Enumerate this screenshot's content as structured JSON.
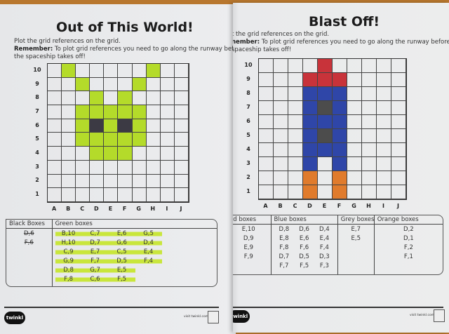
{
  "left_sheet": {
    "title": "Out of This World!",
    "instruction": "Plot the grid references on the grid.",
    "remember_label": "Remember:",
    "remember_text": " To plot grid references you need to go along the runway before",
    "remember_text2": "the spaceship takes off!",
    "columns": [
      "A",
      "B",
      "C",
      "D",
      "E",
      "F",
      "G",
      "H",
      "I",
      "J"
    ],
    "rows": [
      "10",
      "9",
      "8",
      "7",
      "6",
      "5",
      "4",
      "3",
      "2",
      "1"
    ],
    "table": [
      {
        "header": "Black Boxes",
        "color": "#3c3a44",
        "cols": 1,
        "items": [
          "D,6",
          "F,6"
        ],
        "style": "struck"
      },
      {
        "header": "Green boxes",
        "color": "#b4db2a",
        "cols": 4,
        "style": "hl",
        "items": [
          "B,10",
          "C,7",
          "E,6",
          "G,5",
          "H,10",
          "D,7",
          "G,6",
          "D,4",
          "C,9",
          "E,7",
          "C,5",
          "E,4",
          "G,9",
          "F,7",
          "D,5",
          "F,4",
          "D,8",
          "G,7",
          "E,5",
          "",
          "F,8",
          "C,6",
          "F,5",
          ""
        ]
      }
    ],
    "footer": {
      "logo": "twinkl",
      "visit": "visit twinkl.com"
    }
  },
  "right_sheet": {
    "title": "Blast Off!",
    "instruction": "t the grid references on the grid.",
    "remember_label": "nember:",
    "remember_text": " To plot grid references you need to go along the runway before",
    "remember_text2": "spaceship takes off!",
    "columns": [
      "A",
      "B",
      "C",
      "D",
      "E",
      "F",
      "G",
      "H",
      "I",
      "J"
    ],
    "rows": [
      "10",
      "9",
      "8",
      "7",
      "6",
      "5",
      "4",
      "3",
      "2",
      "1"
    ],
    "table": [
      {
        "header": "ed boxes",
        "color": "#c8333a",
        "cols": 1,
        "items": [
          "E,10",
          "D,9",
          "E,9",
          "F,9"
        ],
        "style": ""
      },
      {
        "header": "Blue boxes",
        "color": "#2f46a8",
        "cols": 3,
        "style": "",
        "items": [
          "D,8",
          "D,6",
          "D,4",
          "E,8",
          "E,6",
          "E,4",
          "F,8",
          "F,6",
          "F,4",
          "D,7",
          "D,5",
          "D,3",
          "F,7",
          "F,5",
          "F,3"
        ]
      },
      {
        "header": "Grey boxes",
        "color": "#4c4c4c",
        "cols": 1,
        "items": [
          "E,7",
          "E,5"
        ],
        "style": ""
      },
      {
        "header": "Orange boxes",
        "color": "#e07b2c",
        "cols": 1,
        "items": [
          "D,2",
          "D,1",
          "F,2",
          "F,1"
        ],
        "style": ""
      }
    ],
    "footer": {
      "logo": "twinkl",
      "visit": "visit twinkl.com"
    }
  }
}
